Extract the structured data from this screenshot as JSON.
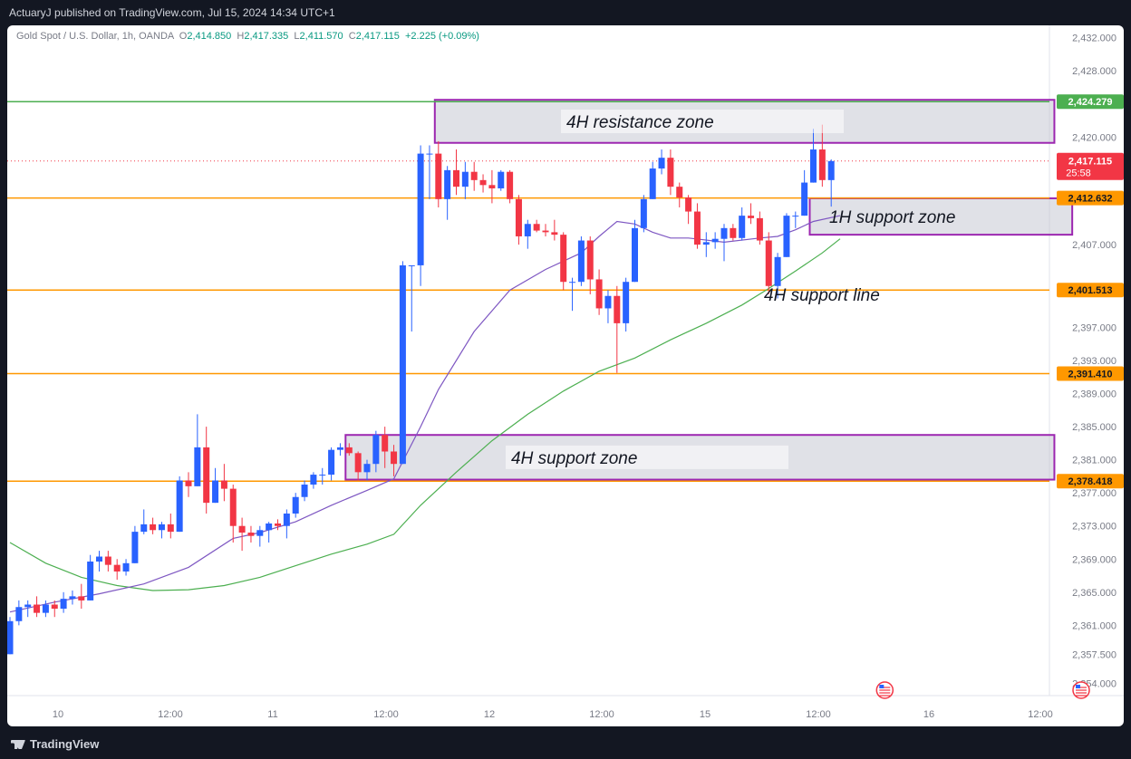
{
  "header": {
    "published": "ActuaryJ published on TradingView.com, Jul 15, 2024 14:34 UTC+1"
  },
  "legend": {
    "symbol": "Gold Spot / U.S. Dollar, 1h, OANDA",
    "o_label": "O",
    "o": "2,414.850",
    "h_label": "H",
    "h": "2,417.335",
    "l_label": "L",
    "l": "2,411.570",
    "c_label": "C",
    "c": "2,417.115",
    "change": "+2.225 (+0.09%)"
  },
  "footer": {
    "brand": "TradingView"
  },
  "colors": {
    "bull": "#2962ff",
    "bear": "#f23645",
    "level": "#ff9800",
    "resistance_line": "#4caf50",
    "zone_border": "#9c27b0",
    "ma_fast": "#7e57c2",
    "ma_slow": "#4caf50"
  },
  "chart_data": {
    "type": "candlestick",
    "interval": "1h",
    "ylim": [
      2352.5,
      2433.5
    ],
    "y_ticks": [
      "2,432.000",
      "2,428.000",
      "2,420.000",
      "2,407.000",
      "2,397.000",
      "2,393.000",
      "2,389.000",
      "2,385.000",
      "2,381.000",
      "2,377.000",
      "2,373.000",
      "2,369.000",
      "2,365.000",
      "2,361.000",
      "2,357.500",
      "2,354.000"
    ],
    "x_ticks": [
      "10",
      "12:00",
      "11",
      "12:00",
      "12",
      "12:00",
      "15",
      "12:00",
      "16",
      "12:00"
    ],
    "candles": [
      {
        "o": 2357.5,
        "h": 2362,
        "l": 2357.5,
        "c": 2361.5
      },
      {
        "o": 2361.5,
        "h": 2364,
        "l": 2361,
        "c": 2363.2
      },
      {
        "o": 2363.2,
        "h": 2364,
        "l": 2362,
        "c": 2363.5
      },
      {
        "o": 2363.5,
        "h": 2364.5,
        "l": 2362,
        "c": 2362.5
      },
      {
        "o": 2362.5,
        "h": 2364,
        "l": 2362,
        "c": 2363.5
      },
      {
        "o": 2363.5,
        "h": 2364,
        "l": 2362,
        "c": 2363
      },
      {
        "o": 2363,
        "h": 2365,
        "l": 2362.5,
        "c": 2364.2
      },
      {
        "o": 2364.2,
        "h": 2365.2,
        "l": 2363.5,
        "c": 2364.5
      },
      {
        "o": 2364.5,
        "h": 2366,
        "l": 2363,
        "c": 2364
      },
      {
        "o": 2364,
        "h": 2369.5,
        "l": 2364,
        "c": 2368.7
      },
      {
        "o": 2368.7,
        "h": 2370,
        "l": 2367.5,
        "c": 2369.3
      },
      {
        "o": 2369.3,
        "h": 2370,
        "l": 2367.5,
        "c": 2368.3
      },
      {
        "o": 2368.3,
        "h": 2369,
        "l": 2366.5,
        "c": 2367.5
      },
      {
        "o": 2367.5,
        "h": 2369,
        "l": 2367,
        "c": 2368.5
      },
      {
        "o": 2368.5,
        "h": 2373,
        "l": 2368.5,
        "c": 2372.3
      },
      {
        "o": 2372.3,
        "h": 2375,
        "l": 2372,
        "c": 2373.2
      },
      {
        "o": 2373.2,
        "h": 2374,
        "l": 2372,
        "c": 2372.5
      },
      {
        "o": 2372.5,
        "h": 2373.5,
        "l": 2371.5,
        "c": 2373.2
      },
      {
        "o": 2373.2,
        "h": 2374.5,
        "l": 2371.5,
        "c": 2372.3
      },
      {
        "o": 2372.3,
        "h": 2379,
        "l": 2372.3,
        "c": 2378.5
      },
      {
        "o": 2378.5,
        "h": 2379.5,
        "l": 2376.5,
        "c": 2377.8
      },
      {
        "o": 2377.8,
        "h": 2386.5,
        "l": 2377.8,
        "c": 2382.5
      },
      {
        "o": 2382.5,
        "h": 2385,
        "l": 2374.5,
        "c": 2375.8
      },
      {
        "o": 2375.8,
        "h": 2380,
        "l": 2375.8,
        "c": 2378.5
      },
      {
        "o": 2378.5,
        "h": 2380.5,
        "l": 2376,
        "c": 2377.5
      },
      {
        "o": 2377.5,
        "h": 2378,
        "l": 2371,
        "c": 2373
      },
      {
        "o": 2373,
        "h": 2374,
        "l": 2370,
        "c": 2372.2
      },
      {
        "o": 2372.2,
        "h": 2373,
        "l": 2371,
        "c": 2371.8
      },
      {
        "o": 2371.8,
        "h": 2373,
        "l": 2370.5,
        "c": 2372.5
      },
      {
        "o": 2372.5,
        "h": 2373.5,
        "l": 2371,
        "c": 2373.3
      },
      {
        "o": 2373.3,
        "h": 2373.8,
        "l": 2372.5,
        "c": 2373
      },
      {
        "o": 2373,
        "h": 2375,
        "l": 2371.5,
        "c": 2374.5
      },
      {
        "o": 2374.5,
        "h": 2377,
        "l": 2374,
        "c": 2376.5
      },
      {
        "o": 2376.5,
        "h": 2378.5,
        "l": 2376,
        "c": 2378
      },
      {
        "o": 2378,
        "h": 2379.5,
        "l": 2377.5,
        "c": 2379.2
      },
      {
        "o": 2379.2,
        "h": 2380,
        "l": 2378,
        "c": 2379.2
      },
      {
        "o": 2379.2,
        "h": 2382.5,
        "l": 2378.5,
        "c": 2382.2
      },
      {
        "o": 2382.2,
        "h": 2383,
        "l": 2381.5,
        "c": 2382.5
      },
      {
        "o": 2382.5,
        "h": 2383,
        "l": 2381.5,
        "c": 2381.8
      },
      {
        "o": 2381.8,
        "h": 2382,
        "l": 2378.5,
        "c": 2379.5
      },
      {
        "o": 2379.5,
        "h": 2381,
        "l": 2378.5,
        "c": 2380.5
      },
      {
        "o": 2380.5,
        "h": 2384.5,
        "l": 2379.5,
        "c": 2384
      },
      {
        "o": 2384,
        "h": 2385,
        "l": 2380,
        "c": 2382
      },
      {
        "o": 2382,
        "h": 2382.8,
        "l": 2379,
        "c": 2380.5
      },
      {
        "o": 2380.5,
        "h": 2405,
        "l": 2380.5,
        "c": 2404.5
      },
      {
        "o": 2404.5,
        "h": 2404.5,
        "l": 2396.5,
        "c": 2404.5
      },
      {
        "o": 2404.5,
        "h": 2419,
        "l": 2402,
        "c": 2418
      },
      {
        "o": 2418,
        "h": 2419,
        "l": 2412.5,
        "c": 2418
      },
      {
        "o": 2418,
        "h": 2419.5,
        "l": 2411.5,
        "c": 2412.5
      },
      {
        "o": 2412.5,
        "h": 2416.5,
        "l": 2410,
        "c": 2416
      },
      {
        "o": 2416,
        "h": 2418.5,
        "l": 2413,
        "c": 2414
      },
      {
        "o": 2414,
        "h": 2417,
        "l": 2412.5,
        "c": 2415.8
      },
      {
        "o": 2415.8,
        "h": 2417,
        "l": 2413.5,
        "c": 2414.8
      },
      {
        "o": 2414.8,
        "h": 2415.5,
        "l": 2413.3,
        "c": 2414.2
      },
      {
        "o": 2414.2,
        "h": 2416,
        "l": 2412,
        "c": 2413.8
      },
      {
        "o": 2413.8,
        "h": 2416,
        "l": 2413.5,
        "c": 2415.8
      },
      {
        "o": 2415.8,
        "h": 2416,
        "l": 2412,
        "c": 2412.5
      },
      {
        "o": 2412.5,
        "h": 2413,
        "l": 2407,
        "c": 2408
      },
      {
        "o": 2408,
        "h": 2410,
        "l": 2406.5,
        "c": 2409.5
      },
      {
        "o": 2409.5,
        "h": 2410,
        "l": 2408.5,
        "c": 2408.7
      },
      {
        "o": 2408.7,
        "h": 2409.5,
        "l": 2408,
        "c": 2408.5
      },
      {
        "o": 2408.5,
        "h": 2410,
        "l": 2407.5,
        "c": 2408.2
      },
      {
        "o": 2408.2,
        "h": 2408.5,
        "l": 2401.5,
        "c": 2402.5
      },
      {
        "o": 2402.5,
        "h": 2403,
        "l": 2399,
        "c": 2402.5
      },
      {
        "o": 2402.5,
        "h": 2408,
        "l": 2402,
        "c": 2407.5
      },
      {
        "o": 2407.5,
        "h": 2408,
        "l": 2401,
        "c": 2402.8
      },
      {
        "o": 2402.8,
        "h": 2404,
        "l": 2398.5,
        "c": 2399.3
      },
      {
        "o": 2399.3,
        "h": 2401.5,
        "l": 2397.5,
        "c": 2400.8
      },
      {
        "o": 2400.8,
        "h": 2402,
        "l": 2391.5,
        "c": 2397.5
      },
      {
        "o": 2397.5,
        "h": 2403,
        "l": 2396.5,
        "c": 2402.5
      },
      {
        "o": 2402.5,
        "h": 2410,
        "l": 2402.5,
        "c": 2409
      },
      {
        "o": 2409,
        "h": 2413,
        "l": 2408.5,
        "c": 2412.5
      },
      {
        "o": 2412.5,
        "h": 2417,
        "l": 2412.5,
        "c": 2416.2
      },
      {
        "o": 2416.2,
        "h": 2418.5,
        "l": 2415.5,
        "c": 2417.5
      },
      {
        "o": 2417.5,
        "h": 2418.5,
        "l": 2413,
        "c": 2414
      },
      {
        "o": 2414,
        "h": 2414.5,
        "l": 2411.5,
        "c": 2412.7
      },
      {
        "o": 2412.7,
        "h": 2413,
        "l": 2409.5,
        "c": 2411
      },
      {
        "o": 2411,
        "h": 2412,
        "l": 2406.5,
        "c": 2407
      },
      {
        "o": 2407,
        "h": 2408.5,
        "l": 2405.5,
        "c": 2407.3
      },
      {
        "o": 2407.3,
        "h": 2408.5,
        "l": 2406.5,
        "c": 2407.7
      },
      {
        "o": 2407.7,
        "h": 2409.5,
        "l": 2405,
        "c": 2409
      },
      {
        "o": 2409,
        "h": 2409.5,
        "l": 2407.5,
        "c": 2407.8
      },
      {
        "o": 2407.8,
        "h": 2411.5,
        "l": 2407.5,
        "c": 2410.5
      },
      {
        "o": 2410.5,
        "h": 2412,
        "l": 2409.5,
        "c": 2410.2
      },
      {
        "o": 2410.2,
        "h": 2411,
        "l": 2407,
        "c": 2407.5
      },
      {
        "o": 2407.5,
        "h": 2408.5,
        "l": 2401,
        "c": 2402
      },
      {
        "o": 2402,
        "h": 2406,
        "l": 2400.5,
        "c": 2405.5
      },
      {
        "o": 2405.5,
        "h": 2410.8,
        "l": 2405.5,
        "c": 2410.5
      },
      {
        "o": 2410.5,
        "h": 2411,
        "l": 2409,
        "c": 2410.5
      },
      {
        "o": 2410.5,
        "h": 2416,
        "l": 2410.5,
        "c": 2414.5
      },
      {
        "o": 2414.5,
        "h": 2421,
        "l": 2414.5,
        "c": 2418.5
      },
      {
        "o": 2418.5,
        "h": 2421.5,
        "l": 2414,
        "c": 2414.8
      },
      {
        "o": 2414.8,
        "h": 2417.3,
        "l": 2411.6,
        "c": 2417.1
      }
    ],
    "ma_fast": [
      [
        0,
        2362.6
      ],
      [
        5,
        2363.8
      ],
      [
        10,
        2364.8
      ],
      [
        15,
        2366
      ],
      [
        20,
        2368
      ],
      [
        25,
        2371.5
      ],
      [
        28,
        2372.2
      ],
      [
        32,
        2373.5
      ],
      [
        36,
        2375.5
      ],
      [
        40,
        2377.3
      ],
      [
        43,
        2378.7
      ],
      [
        46,
        2385
      ],
      [
        48,
        2389.5
      ],
      [
        52,
        2396.5
      ],
      [
        56,
        2401.5
      ],
      [
        60,
        2404
      ],
      [
        64,
        2406
      ],
      [
        66,
        2408
      ],
      [
        68,
        2409.8
      ],
      [
        70,
        2409.5
      ],
      [
        72,
        2408.5
      ],
      [
        74,
        2407.8
      ],
      [
        76,
        2407.8
      ],
      [
        80,
        2407.3
      ],
      [
        84,
        2407.8
      ],
      [
        86,
        2408
      ],
      [
        88,
        2408.8
      ],
      [
        90,
        2409.8
      ],
      [
        93,
        2410.5
      ]
    ],
    "ma_slow": [
      [
        0,
        2371
      ],
      [
        4,
        2368.5
      ],
      [
        8,
        2366.8
      ],
      [
        12,
        2365.8
      ],
      [
        16,
        2365.2
      ],
      [
        20,
        2365.3
      ],
      [
        24,
        2365.8
      ],
      [
        28,
        2366.8
      ],
      [
        32,
        2368.2
      ],
      [
        36,
        2369.6
      ],
      [
        40,
        2370.8
      ],
      [
        43,
        2372
      ],
      [
        46,
        2375.5
      ],
      [
        50,
        2379.5
      ],
      [
        54,
        2383.3
      ],
      [
        58,
        2386.5
      ],
      [
        62,
        2389.3
      ],
      [
        66,
        2391.7
      ],
      [
        70,
        2393.3
      ],
      [
        74,
        2395.5
      ],
      [
        78,
        2397.5
      ],
      [
        82,
        2399.7
      ],
      [
        85,
        2401.7
      ],
      [
        88,
        2403.8
      ],
      [
        91,
        2406
      ],
      [
        93,
        2407.7
      ]
    ],
    "levels": [
      {
        "value": 2424.279,
        "label": "2,424.279",
        "color": "#4caf50"
      },
      {
        "value": 2412.632,
        "label": "2,412.632",
        "color": "#ff9800"
      },
      {
        "value": 2401.513,
        "label": "2,401.513",
        "color": "#ff9800"
      },
      {
        "value": 2391.41,
        "label": "2,391.410",
        "color": "#ff9800"
      },
      {
        "value": 2378.418,
        "label": "2,378.418",
        "color": "#ff9800"
      }
    ],
    "last_price": {
      "value": 2417.115,
      "label": "2,417.115",
      "countdown": "25:58"
    },
    "zones": [
      {
        "label": "4H resistance zone",
        "y_top": 2424.5,
        "y_bottom": 2419.3,
        "x_from": 48,
        "x_to": 117
      },
      {
        "label": "1H support zone",
        "y_top": 2412.6,
        "y_bottom": 2408.2,
        "x_from": 90,
        "x_to": 119
      },
      {
        "label": "4H support zone",
        "y_top": 2384,
        "y_bottom": 2378.6,
        "x_from": 38,
        "x_to": 117
      }
    ],
    "annotations": [
      {
        "label": "4H support line",
        "x": 87,
        "y": 2400
      }
    ],
    "event_markers": [
      98,
      120
    ]
  }
}
